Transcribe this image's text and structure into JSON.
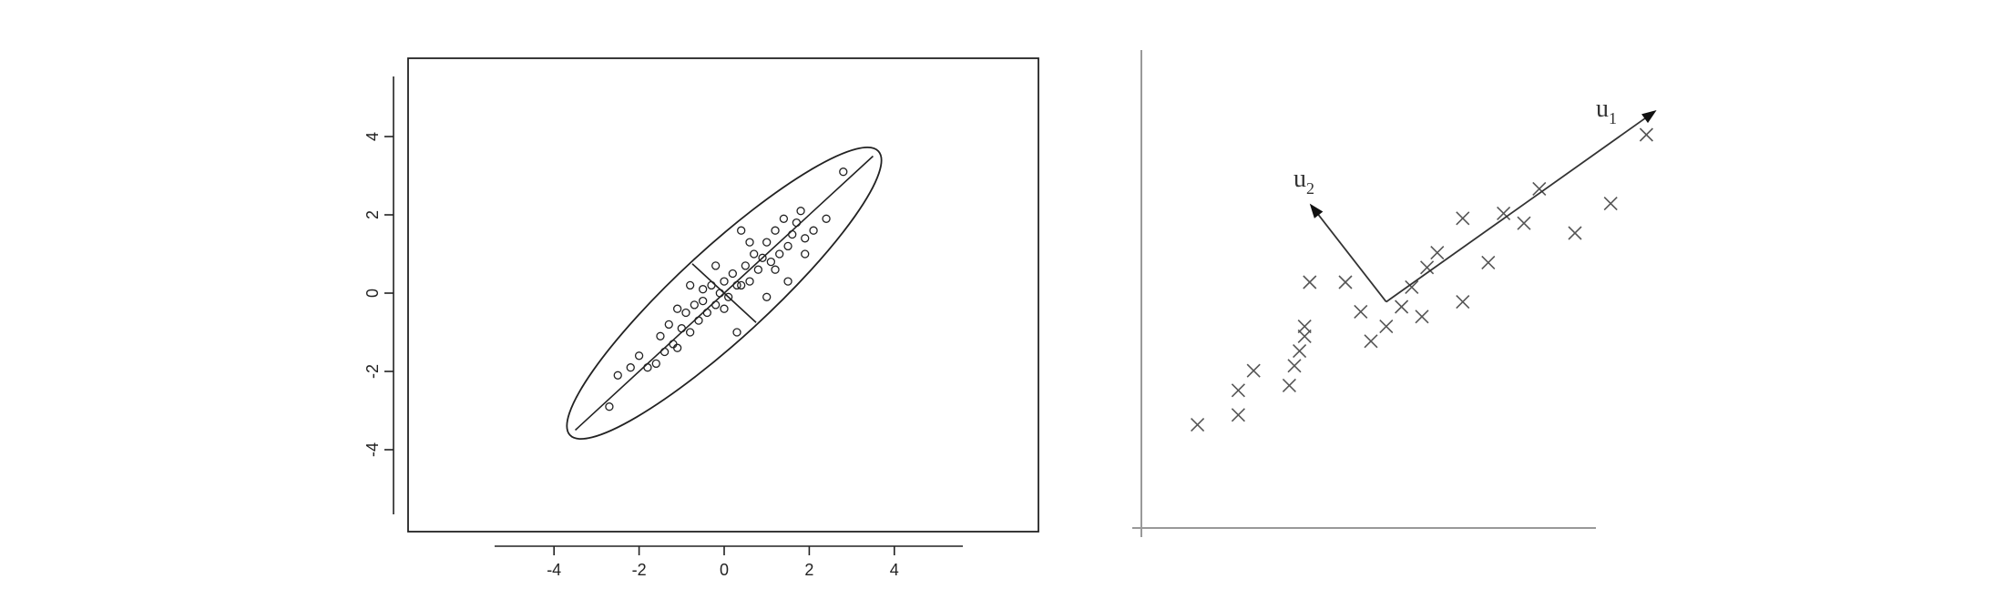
{
  "chart_data": [
    {
      "type": "scatter",
      "title": "",
      "xlabel": "",
      "ylabel": "",
      "xlim": [
        -5.5,
        5.5
      ],
      "ylim": [
        -4.4,
        4.4
      ],
      "xticks": [
        "-4",
        "-2",
        "0",
        "2",
        "4"
      ],
      "yticks": [
        "-4",
        "-2",
        "0",
        "2",
        "4"
      ],
      "grid": false,
      "marker": "open-circle",
      "ellipse": {
        "center": [
          0,
          0
        ],
        "major_axis_end": [
          3.5,
          3.5
        ],
        "minor_axis_end": [
          0.75,
          -0.75
        ]
      },
      "points": [
        [
          2.8,
          3.1
        ],
        [
          2.4,
          1.9
        ],
        [
          2.1,
          1.6
        ],
        [
          1.9,
          1.4
        ],
        [
          1.8,
          2.1
        ],
        [
          1.7,
          1.8
        ],
        [
          1.6,
          1.5
        ],
        [
          1.5,
          1.2
        ],
        [
          1.5,
          0.3
        ],
        [
          1.4,
          1.9
        ],
        [
          1.3,
          1.0
        ],
        [
          1.2,
          1.6
        ],
        [
          1.1,
          0.8
        ],
        [
          1.0,
          1.3
        ],
        [
          0.9,
          0.9
        ],
        [
          0.8,
          0.6
        ],
        [
          0.7,
          1.0
        ],
        [
          0.6,
          0.3
        ],
        [
          0.5,
          0.7
        ],
        [
          0.4,
          1.6
        ],
        [
          0.3,
          0.2
        ],
        [
          0.2,
          0.5
        ],
        [
          0.1,
          -0.1
        ],
        [
          0.0,
          0.3
        ],
        [
          -0.1,
          0.0
        ],
        [
          -0.2,
          -0.3
        ],
        [
          -0.3,
          0.2
        ],
        [
          -0.4,
          -0.5
        ],
        [
          -0.5,
          -0.2
        ],
        [
          -0.6,
          -0.7
        ],
        [
          -0.7,
          -0.3
        ],
        [
          -0.8,
          -1.0
        ],
        [
          -0.9,
          -0.5
        ],
        [
          -1.0,
          -0.9
        ],
        [
          -1.1,
          -0.4
        ],
        [
          -1.2,
          -1.3
        ],
        [
          -1.3,
          -0.8
        ],
        [
          -1.4,
          -1.5
        ],
        [
          -1.5,
          -1.1
        ],
        [
          -1.6,
          -1.8
        ],
        [
          -1.8,
          -1.9
        ],
        [
          -2.0,
          -1.6
        ],
        [
          -2.2,
          -1.9
        ],
        [
          -2.5,
          -2.1
        ],
        [
          -2.7,
          -2.9
        ],
        [
          0.3,
          -1.0
        ],
        [
          -0.2,
          0.7
        ],
        [
          1.0,
          -0.1
        ],
        [
          0.6,
          1.3
        ],
        [
          -0.8,
          0.2
        ],
        [
          -1.1,
          -1.4
        ],
        [
          1.9,
          1.0
        ],
        [
          0.4,
          0.2
        ],
        [
          -0.5,
          0.1
        ],
        [
          0.0,
          -0.4
        ],
        [
          1.2,
          0.6
        ]
      ]
    },
    {
      "type": "scatter",
      "title": "",
      "xlabel": "",
      "ylabel": "",
      "marker": "x",
      "grid": false,
      "vector_labels": {
        "u1": "u",
        "u1_sub": "1",
        "u2": "u",
        "u2_sub": "2"
      },
      "origin": [
        4.8,
        4.6
      ],
      "u1_end": [
        10.1,
        8.5
      ],
      "u2_end": [
        3.3,
        6.6
      ],
      "points": [
        [
          1.1,
          2.1
        ],
        [
          1.9,
          2.8
        ],
        [
          1.9,
          2.3
        ],
        [
          2.2,
          3.2
        ],
        [
          2.9,
          2.9
        ],
        [
          3.0,
          3.3
        ],
        [
          3.1,
          3.6
        ],
        [
          3.2,
          3.9
        ],
        [
          3.2,
          4.1
        ],
        [
          3.3,
          5.0
        ],
        [
          4.0,
          5.0
        ],
        [
          4.3,
          4.4
        ],
        [
          4.5,
          3.8
        ],
        [
          4.8,
          4.1
        ],
        [
          5.1,
          4.5
        ],
        [
          5.3,
          4.9
        ],
        [
          5.5,
          4.3
        ],
        [
          5.6,
          5.3
        ],
        [
          5.8,
          5.6
        ],
        [
          6.3,
          6.3
        ],
        [
          6.3,
          4.6
        ],
        [
          6.8,
          5.4
        ],
        [
          7.1,
          6.4
        ],
        [
          7.5,
          6.2
        ],
        [
          7.8,
          6.9
        ],
        [
          8.5,
          6.0
        ],
        [
          9.2,
          6.6
        ],
        [
          9.9,
          8.0
        ]
      ]
    }
  ]
}
